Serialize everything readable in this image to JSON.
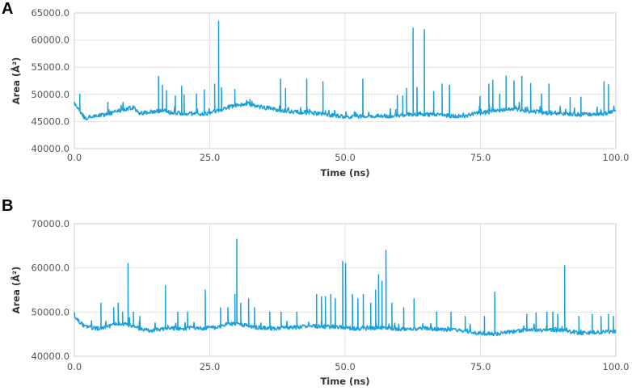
{
  "panels": [
    {
      "letter": "A"
    },
    {
      "letter": "B"
    }
  ],
  "chart_data": [
    {
      "type": "line",
      "panel": "A",
      "xlabel": "Time (ns)",
      "ylabel": "Area (Å²)",
      "xlim": [
        0,
        100
      ],
      "ylim": [
        40000,
        65000
      ],
      "x_ticks": [
        "0.0",
        "25.0",
        "50.0",
        "75.0",
        "100.0"
      ],
      "y_ticks": [
        "40000.0",
        "45000.0",
        "50000.0",
        "55000.0",
        "60000.0",
        "65000.0"
      ],
      "grid": true,
      "color": "#1aa1da",
      "baseline": [
        [
          0,
          48500
        ],
        [
          1,
          46800
        ],
        [
          2,
          45600
        ],
        [
          4,
          46100
        ],
        [
          6,
          46300
        ],
        [
          8,
          46900
        ],
        [
          10,
          47400
        ],
        [
          11,
          47600
        ],
        [
          12,
          46500
        ],
        [
          14,
          46700
        ],
        [
          16,
          47000
        ],
        [
          18,
          46600
        ],
        [
          20,
          46500
        ],
        [
          22,
          46400
        ],
        [
          24,
          46400
        ],
        [
          26,
          46800
        ],
        [
          28,
          47500
        ],
        [
          30,
          48000
        ],
        [
          32,
          48300
        ],
        [
          34,
          47700
        ],
        [
          36,
          47400
        ],
        [
          38,
          47000
        ],
        [
          40,
          46800
        ],
        [
          42,
          46700
        ],
        [
          44,
          46600
        ],
        [
          46,
          46400
        ],
        [
          48,
          46100
        ],
        [
          50,
          45900
        ],
        [
          52,
          45900
        ],
        [
          54,
          46100
        ],
        [
          56,
          46000
        ],
        [
          58,
          46000
        ],
        [
          60,
          46100
        ],
        [
          62,
          46300
        ],
        [
          64,
          46300
        ],
        [
          66,
          46300
        ],
        [
          68,
          46200
        ],
        [
          70,
          46000
        ],
        [
          72,
          46000
        ],
        [
          74,
          46400
        ],
        [
          76,
          46700
        ],
        [
          78,
          47100
        ],
        [
          80,
          47300
        ],
        [
          82,
          47200
        ],
        [
          84,
          46900
        ],
        [
          86,
          46700
        ],
        [
          88,
          46500
        ],
        [
          90,
          46400
        ],
        [
          92,
          46300
        ],
        [
          94,
          46300
        ],
        [
          96,
          46300
        ],
        [
          98,
          46500
        ],
        [
          100,
          46900
        ]
      ],
      "spikes": [
        [
          1.0,
          50000
        ],
        [
          6.2,
          48500
        ],
        [
          15.5,
          53300
        ],
        [
          16.3,
          51700
        ],
        [
          17.0,
          50700
        ],
        [
          18.6,
          49700
        ],
        [
          19.8,
          51500
        ],
        [
          20.3,
          49900
        ],
        [
          22.5,
          50100
        ],
        [
          24.0,
          50800
        ],
        [
          25.9,
          51900
        ],
        [
          26.6,
          63500
        ],
        [
          27.2,
          51200
        ],
        [
          29.6,
          50900
        ],
        [
          38.1,
          52800
        ],
        [
          39.0,
          51100
        ],
        [
          42.9,
          52800
        ],
        [
          45.9,
          52300
        ],
        [
          53.3,
          52800
        ],
        [
          59.6,
          49800
        ],
        [
          60.6,
          49700
        ],
        [
          61.4,
          51100
        ],
        [
          62.5,
          62200
        ],
        [
          63.3,
          51300
        ],
        [
          64.6,
          61900
        ],
        [
          66.4,
          50500
        ],
        [
          67.9,
          51900
        ],
        [
          69.3,
          51700
        ],
        [
          74.9,
          49600
        ],
        [
          76.5,
          51900
        ],
        [
          77.3,
          52600
        ],
        [
          78.5,
          50000
        ],
        [
          79.7,
          53400
        ],
        [
          81.2,
          52500
        ],
        [
          82.6,
          53300
        ],
        [
          84.3,
          52000
        ],
        [
          86.3,
          50100
        ],
        [
          87.6,
          51900
        ],
        [
          91.5,
          49400
        ],
        [
          93.5,
          49500
        ],
        [
          97.8,
          52300
        ],
        [
          98.6,
          51800
        ]
      ]
    },
    {
      "type": "line",
      "panel": "B",
      "xlabel": "Time (ns)",
      "ylabel": "Area (Å²)",
      "xlim": [
        0,
        100
      ],
      "ylim": [
        40000,
        70000
      ],
      "x_ticks": [
        "0.0",
        "25.0",
        "50.0",
        "75.0",
        "100.0"
      ],
      "y_ticks": [
        "40000.0",
        "50000.0",
        "60000.0",
        "70000.0"
      ],
      "grid": true,
      "color": "#1aa1da",
      "baseline": [
        [
          0,
          48700
        ],
        [
          2,
          46700
        ],
        [
          4,
          46300
        ],
        [
          6,
          46600
        ],
        [
          8,
          47400
        ],
        [
          10,
          47100
        ],
        [
          12,
          46300
        ],
        [
          14,
          45800
        ],
        [
          16,
          46100
        ],
        [
          18,
          46400
        ],
        [
          20,
          46300
        ],
        [
          22,
          46400
        ],
        [
          24,
          46300
        ],
        [
          26,
          46500
        ],
        [
          28,
          47200
        ],
        [
          30,
          47300
        ],
        [
          32,
          46900
        ],
        [
          34,
          46500
        ],
        [
          36,
          46300
        ],
        [
          38,
          46400
        ],
        [
          40,
          46500
        ],
        [
          42,
          46700
        ],
        [
          44,
          46800
        ],
        [
          46,
          46700
        ],
        [
          48,
          46700
        ],
        [
          50,
          46400
        ],
        [
          52,
          46200
        ],
        [
          54,
          46300
        ],
        [
          56,
          46500
        ],
        [
          58,
          46400
        ],
        [
          60,
          46200
        ],
        [
          62,
          46300
        ],
        [
          64,
          46300
        ],
        [
          66,
          46200
        ],
        [
          68,
          46100
        ],
        [
          70,
          45900
        ],
        [
          72,
          45800
        ],
        [
          74,
          45400
        ],
        [
          76,
          45100
        ],
        [
          78,
          45100
        ],
        [
          80,
          45400
        ],
        [
          82,
          45800
        ],
        [
          84,
          46100
        ],
        [
          86,
          46000
        ],
        [
          88,
          45900
        ],
        [
          90,
          45900
        ],
        [
          92,
          45500
        ],
        [
          94,
          45300
        ],
        [
          96,
          45400
        ],
        [
          98,
          45500
        ],
        [
          100,
          45700
        ]
      ],
      "spikes": [
        [
          4.9,
          52000
        ],
        [
          7.3,
          51000
        ],
        [
          8.1,
          52000
        ],
        [
          8.9,
          50000
        ],
        [
          9.9,
          61000
        ],
        [
          10.9,
          50000
        ],
        [
          12.1,
          49000
        ],
        [
          16.8,
          56000
        ],
        [
          19.1,
          50000
        ],
        [
          20.9,
          50000
        ],
        [
          24.2,
          55000
        ],
        [
          27.0,
          51000
        ],
        [
          28.4,
          51000
        ],
        [
          29.6,
          54000
        ],
        [
          30.0,
          66500
        ],
        [
          30.7,
          52000
        ],
        [
          32.2,
          53000
        ],
        [
          33.3,
          51000
        ],
        [
          36.1,
          50000
        ],
        [
          38.2,
          50000
        ],
        [
          41.1,
          50000
        ],
        [
          44.7,
          54000
        ],
        [
          45.6,
          53500
        ],
        [
          46.4,
          53500
        ],
        [
          47.4,
          54000
        ],
        [
          48.2,
          53000
        ],
        [
          49.5,
          61500
        ],
        [
          50.1,
          61000
        ],
        [
          51.4,
          54000
        ],
        [
          52.4,
          53000
        ],
        [
          53.4,
          54000
        ],
        [
          54.7,
          52000
        ],
        [
          55.6,
          55000
        ],
        [
          56.2,
          58500
        ],
        [
          56.8,
          57000
        ],
        [
          57.5,
          64000
        ],
        [
          58.6,
          52000
        ],
        [
          60.8,
          51000
        ],
        [
          62.7,
          53000
        ],
        [
          66.9,
          50000
        ],
        [
          69.5,
          50000
        ],
        [
          72.2,
          49000
        ],
        [
          75.7,
          49000
        ],
        [
          77.6,
          54500
        ],
        [
          83.5,
          49500
        ],
        [
          85.3,
          49800
        ],
        [
          87.3,
          50000
        ],
        [
          88.4,
          50000
        ],
        [
          89.3,
          49500
        ],
        [
          90.5,
          60500
        ],
        [
          93.2,
          49000
        ],
        [
          95.6,
          49500
        ],
        [
          97.3,
          49000
        ],
        [
          98.6,
          49500
        ],
        [
          99.5,
          49000
        ]
      ]
    }
  ]
}
